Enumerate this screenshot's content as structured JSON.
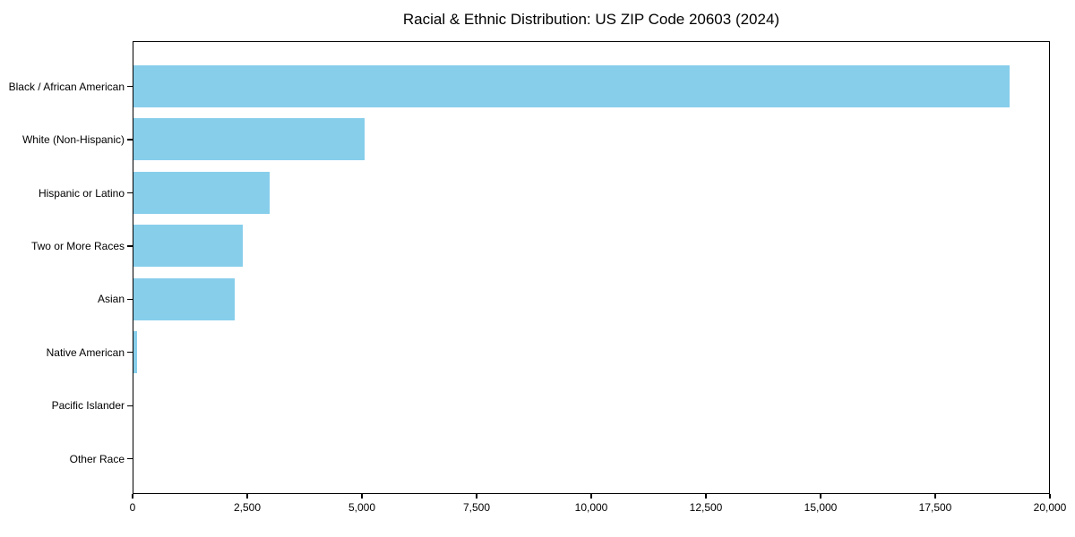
{
  "figure": {
    "background": "#ffffff",
    "text_color": "#000000"
  },
  "chart_data": {
    "type": "bar",
    "orientation": "horizontal",
    "title": "Racial & Ethnic Distribution: US ZIP Code 20603 (2024)",
    "categories": [
      "Black / African American",
      "White (Non-Hispanic)",
      "Hispanic or Latino",
      "Two or More Races",
      "Asian",
      "Native American",
      "Pacific Islander",
      "Other Race"
    ],
    "values": [
      19100,
      5040,
      2970,
      2380,
      2210,
      85,
      0,
      0
    ],
    "xlabel": "",
    "ylabel": "",
    "xlim": [
      0,
      20000
    ],
    "xticks": [
      0,
      2500,
      5000,
      7500,
      10000,
      12500,
      15000,
      17500,
      20000
    ],
    "xtick_labels": [
      "0",
      "2,500",
      "5,000",
      "7,500",
      "10,000",
      "12,500",
      "15,000",
      "17,500",
      "20,000"
    ],
    "bar_color": "#87CEEB",
    "grid": false,
    "legend": null
  }
}
